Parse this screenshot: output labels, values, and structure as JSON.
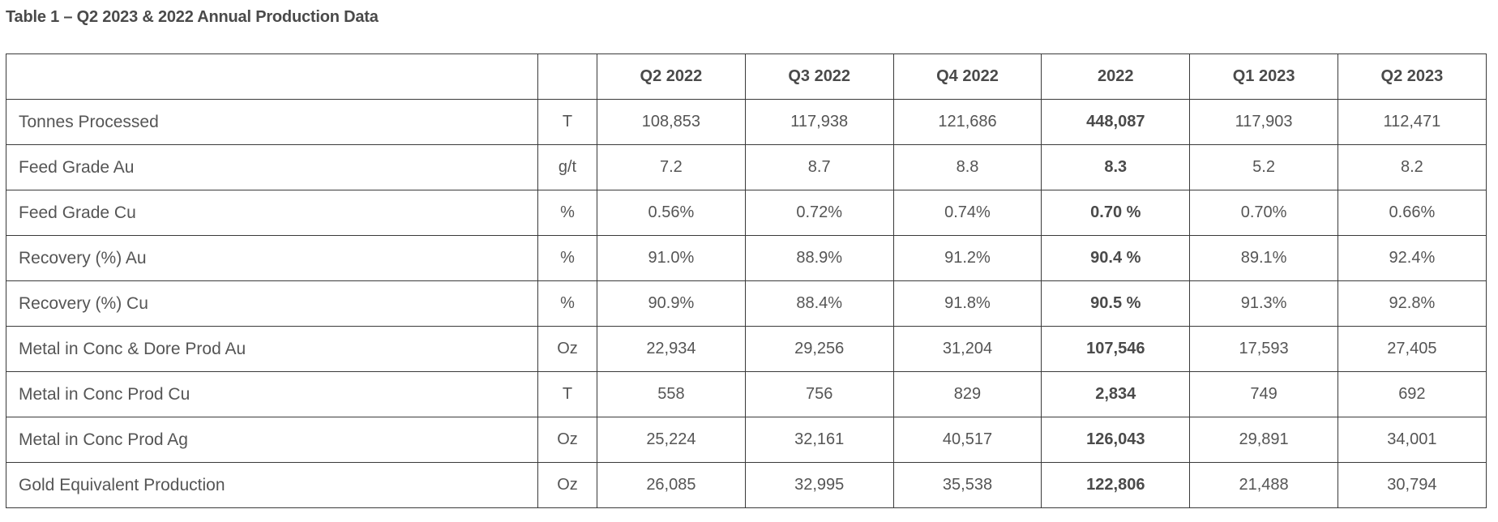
{
  "caption": "Table 1 – Q2 2023 & 2022 Annual Production Data",
  "table": {
    "header": {
      "label": "",
      "unit": "",
      "periods": [
        "Q2 2022",
        "Q3 2022",
        "Q4 2022",
        "2022",
        "Q1 2023",
        "Q2 2023"
      ]
    },
    "rows": [
      {
        "label": "Tonnes Processed",
        "unit": "T",
        "values": [
          "108,853",
          "117,938",
          "121,686",
          "448,087",
          "117,903",
          "112,471"
        ]
      },
      {
        "label": "Feed Grade Au",
        "unit": "g/t",
        "values": [
          "7.2",
          "8.7",
          "8.8",
          "8.3",
          "5.2",
          "8.2"
        ]
      },
      {
        "label": "Feed Grade Cu",
        "unit": "%",
        "values": [
          "0.56%",
          "0.72%",
          "0.74%",
          "0.70 %",
          "0.70%",
          "0.66%"
        ]
      },
      {
        "label": "Recovery (%) Au",
        "unit": "%",
        "values": [
          "91.0%",
          "88.9%",
          "91.2%",
          "90.4 %",
          "89.1%",
          "92.4%"
        ]
      },
      {
        "label": "Recovery (%) Cu",
        "unit": "%",
        "values": [
          "90.9%",
          "88.4%",
          "91.8%",
          "90.5 %",
          "91.3%",
          "92.8%"
        ]
      },
      {
        "label": "Metal in Conc & Dore Prod Au",
        "unit": "Oz",
        "values": [
          "22,934",
          "29,256",
          "31,204",
          "107,546",
          "17,593",
          "27,405"
        ]
      },
      {
        "label": "Metal in Conc Prod Cu",
        "unit": "T",
        "values": [
          "558",
          "756",
          "829",
          "2,834",
          "749",
          "692"
        ]
      },
      {
        "label": "Metal in Conc Prod Ag",
        "unit": "Oz",
        "values": [
          "25,224",
          "32,161",
          "40,517",
          "126,043",
          "29,891",
          "34,001"
        ]
      },
      {
        "label": "Gold Equivalent Production",
        "unit": "Oz",
        "values": [
          "26,085",
          "32,995",
          "35,538",
          "122,806",
          "21,488",
          "30,794"
        ]
      }
    ]
  }
}
